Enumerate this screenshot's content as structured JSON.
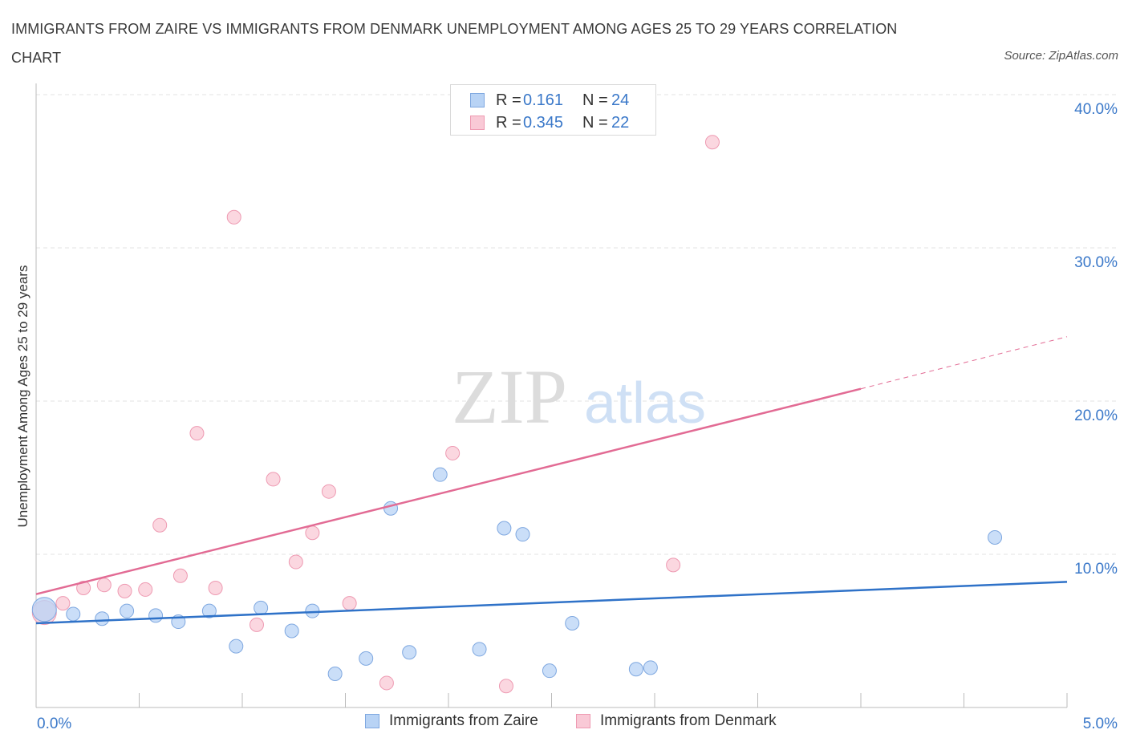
{
  "title": "IMMIGRANTS FROM ZAIRE VS IMMIGRANTS FROM DENMARK UNEMPLOYMENT AMONG AGES 25 TO 29 YEARS CORRELATION CHART",
  "source": "Source: ZipAtlas.com",
  "watermark": {
    "zip": "ZIP",
    "atlas": "atlas"
  },
  "colors": {
    "zaire_fill": "#b8d3f5",
    "zaire_stroke": "#7fa8e0",
    "zaire_line": "#2f72c8",
    "denmark_fill": "#f9c9d6",
    "denmark_stroke": "#ee9ab2",
    "denmark_line": "#e26b94",
    "tick_label": "#3a78c9",
    "grid": "#e3e3e3"
  },
  "legend": {
    "rows": [
      {
        "r_label": "R =",
        "r_value": "0.161",
        "n_label": "N =",
        "n_value": "24"
      },
      {
        "r_label": "R =",
        "r_value": "0.345",
        "n_label": "N =",
        "n_value": "22"
      }
    ]
  },
  "chart_data": {
    "type": "scatter",
    "title": "IMMIGRANTS FROM ZAIRE VS IMMIGRANTS FROM DENMARK UNEMPLOYMENT AMONG AGES 25 TO 29 YEARS CORRELATION CHART",
    "xlabel": "",
    "ylabel": "Unemployment Among Ages 25 to 29 years",
    "xlim": [
      0,
      5
    ],
    "ylim": [
      0,
      40
    ],
    "x_tick_labels": [
      "0.0%",
      "5.0%"
    ],
    "y_ticks": [
      10,
      20,
      30,
      40
    ],
    "y_tick_labels": [
      "10.0%",
      "20.0%",
      "30.0%",
      "40.0%"
    ],
    "grid": true,
    "legend_position": "bottom-center",
    "series": [
      {
        "name": "Immigrants from Zaire",
        "points": [
          [
            0.04,
            6.4
          ],
          [
            0.18,
            6.1
          ],
          [
            0.32,
            5.8
          ],
          [
            0.44,
            6.3
          ],
          [
            0.58,
            6.0
          ],
          [
            0.69,
            5.6
          ],
          [
            0.84,
            6.3
          ],
          [
            0.97,
            4.0
          ],
          [
            1.09,
            6.5
          ],
          [
            1.24,
            5.0
          ],
          [
            1.34,
            6.3
          ],
          [
            1.45,
            2.2
          ],
          [
            1.6,
            3.2
          ],
          [
            1.72,
            13.0
          ],
          [
            1.81,
            3.6
          ],
          [
            1.96,
            15.2
          ],
          [
            2.15,
            3.8
          ],
          [
            2.27,
            11.7
          ],
          [
            2.36,
            11.3
          ],
          [
            2.49,
            2.4
          ],
          [
            2.6,
            5.5
          ],
          [
            2.91,
            2.5
          ],
          [
            2.98,
            2.6
          ],
          [
            4.65,
            11.1
          ]
        ],
        "trend": {
          "x": [
            0,
            5
          ],
          "y": [
            5.5,
            8.2
          ]
        }
      },
      {
        "name": "Immigrants from Denmark",
        "points": [
          [
            0.04,
            6.2
          ],
          [
            0.13,
            6.8
          ],
          [
            0.23,
            7.8
          ],
          [
            0.33,
            8.0
          ],
          [
            0.43,
            7.6
          ],
          [
            0.53,
            7.7
          ],
          [
            0.6,
            11.9
          ],
          [
            0.7,
            8.6
          ],
          [
            0.78,
            17.9
          ],
          [
            0.87,
            7.8
          ],
          [
            0.96,
            32.0
          ],
          [
            1.07,
            5.4
          ],
          [
            1.15,
            14.9
          ],
          [
            1.26,
            9.5
          ],
          [
            1.34,
            11.4
          ],
          [
            1.42,
            14.1
          ],
          [
            1.52,
            6.8
          ],
          [
            1.7,
            1.6
          ],
          [
            2.02,
            16.6
          ],
          [
            2.28,
            1.4
          ],
          [
            3.09,
            9.3
          ],
          [
            3.28,
            36.9
          ]
        ],
        "trend": {
          "x": [
            0,
            4.0
          ],
          "y": [
            7.4,
            20.8
          ]
        },
        "trend_dashed": {
          "x": [
            4.0,
            5.0
          ],
          "y": [
            20.8,
            24.2
          ]
        }
      }
    ]
  }
}
